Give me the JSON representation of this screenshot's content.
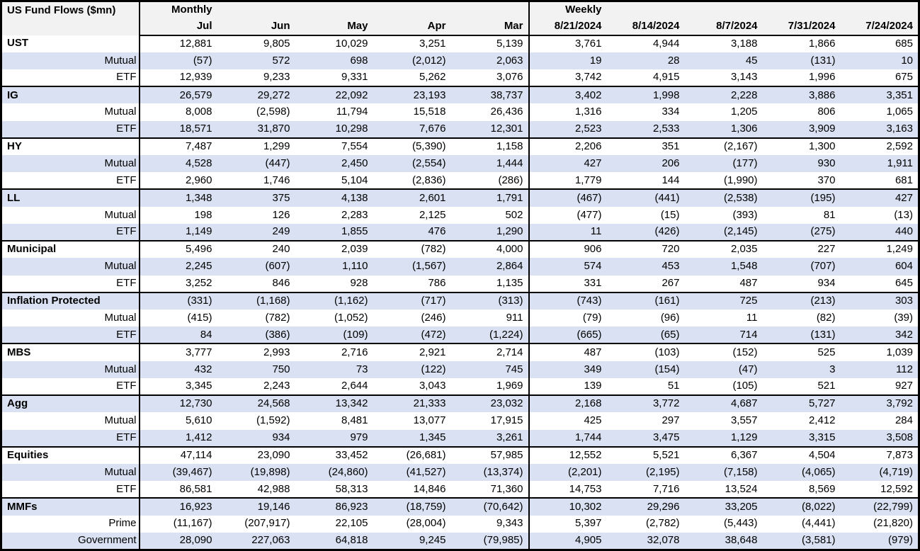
{
  "chart_data": {
    "type": "table",
    "title": "US Fund Flows ($mn)",
    "group_headers": {
      "monthly": "Monthly",
      "weekly": "Weekly"
    },
    "columns": [
      "Jul",
      "Jun",
      "May",
      "Apr",
      "Mar",
      "8/21/2024",
      "8/14/2024",
      "8/7/2024",
      "7/31/2024",
      "7/24/2024"
    ],
    "groups": [
      {
        "label": "UST",
        "values": [
          "12,881",
          "9,805",
          "10,029",
          "3,251",
          "5,139",
          "3,761",
          "4,944",
          "3,188",
          "1,866",
          "685"
        ],
        "subrows": [
          {
            "label": "Mutual",
            "values": [
              "(57)",
              "572",
              "698",
              "(2,012)",
              "2,063",
              "19",
              "28",
              "45",
              "(131)",
              "10"
            ]
          },
          {
            "label": "ETF",
            "values": [
              "12,939",
              "9,233",
              "9,331",
              "5,262",
              "3,076",
              "3,742",
              "4,915",
              "3,143",
              "1,996",
              "675"
            ]
          }
        ]
      },
      {
        "label": "IG",
        "values": [
          "26,579",
          "29,272",
          "22,092",
          "23,193",
          "38,737",
          "3,402",
          "1,998",
          "2,228",
          "3,886",
          "3,351"
        ],
        "subrows": [
          {
            "label": "Mutual",
            "values": [
              "8,008",
              "(2,598)",
              "11,794",
              "15,518",
              "26,436",
              "1,316",
              "334",
              "1,205",
              "806",
              "1,065"
            ]
          },
          {
            "label": "ETF",
            "values": [
              "18,571",
              "31,870",
              "10,298",
              "7,676",
              "12,301",
              "2,523",
              "2,533",
              "1,306",
              "3,909",
              "3,163"
            ]
          }
        ]
      },
      {
        "label": "HY",
        "values": [
          "7,487",
          "1,299",
          "7,554",
          "(5,390)",
          "1,158",
          "2,206",
          "351",
          "(2,167)",
          "1,300",
          "2,592"
        ],
        "subrows": [
          {
            "label": "Mutual",
            "values": [
              "4,528",
              "(447)",
              "2,450",
              "(2,554)",
              "1,444",
              "427",
              "206",
              "(177)",
              "930",
              "1,911"
            ]
          },
          {
            "label": "ETF",
            "values": [
              "2,960",
              "1,746",
              "5,104",
              "(2,836)",
              "(286)",
              "1,779",
              "144",
              "(1,990)",
              "370",
              "681"
            ]
          }
        ]
      },
      {
        "label": "LL",
        "values": [
          "1,348",
          "375",
          "4,138",
          "2,601",
          "1,791",
          "(467)",
          "(441)",
          "(2,538)",
          "(195)",
          "427"
        ],
        "subrows": [
          {
            "label": "Mutual",
            "values": [
              "198",
              "126",
              "2,283",
              "2,125",
              "502",
              "(477)",
              "(15)",
              "(393)",
              "81",
              "(13)"
            ]
          },
          {
            "label": "ETF",
            "values": [
              "1,149",
              "249",
              "1,855",
              "476",
              "1,290",
              "11",
              "(426)",
              "(2,145)",
              "(275)",
              "440"
            ]
          }
        ]
      },
      {
        "label": "Municipal",
        "values": [
          "5,496",
          "240",
          "2,039",
          "(782)",
          "4,000",
          "906",
          "720",
          "2,035",
          "227",
          "1,249"
        ],
        "subrows": [
          {
            "label": "Mutual",
            "values": [
              "2,245",
              "(607)",
              "1,110",
              "(1,567)",
              "2,864",
              "574",
              "453",
              "1,548",
              "(707)",
              "604"
            ]
          },
          {
            "label": "ETF",
            "values": [
              "3,252",
              "846",
              "928",
              "786",
              "1,135",
              "331",
              "267",
              "487",
              "934",
              "645"
            ]
          }
        ]
      },
      {
        "label": "Inflation Protected",
        "values": [
          "(331)",
          "(1,168)",
          "(1,162)",
          "(717)",
          "(313)",
          "(743)",
          "(161)",
          "725",
          "(213)",
          "303"
        ],
        "subrows": [
          {
            "label": "Mutual",
            "values": [
              "(415)",
              "(782)",
              "(1,052)",
              "(246)",
              "911",
              "(79)",
              "(96)",
              "11",
              "(82)",
              "(39)"
            ]
          },
          {
            "label": "ETF",
            "values": [
              "84",
              "(386)",
              "(109)",
              "(472)",
              "(1,224)",
              "(665)",
              "(65)",
              "714",
              "(131)",
              "342"
            ]
          }
        ]
      },
      {
        "label": "MBS",
        "values": [
          "3,777",
          "2,993",
          "2,716",
          "2,921",
          "2,714",
          "487",
          "(103)",
          "(152)",
          "525",
          "1,039"
        ],
        "subrows": [
          {
            "label": "Mutual",
            "values": [
              "432",
              "750",
              "73",
              "(122)",
              "745",
              "349",
              "(154)",
              "(47)",
              "3",
              "112"
            ]
          },
          {
            "label": "ETF",
            "values": [
              "3,345",
              "2,243",
              "2,644",
              "3,043",
              "1,969",
              "139",
              "51",
              "(105)",
              "521",
              "927"
            ]
          }
        ]
      },
      {
        "label": "Agg",
        "values": [
          "12,730",
          "24,568",
          "13,342",
          "21,333",
          "23,032",
          "2,168",
          "3,772",
          "4,687",
          "5,727",
          "3,792"
        ],
        "subrows": [
          {
            "label": "Mutual",
            "values": [
              "5,610",
              "(1,592)",
              "8,481",
              "13,077",
              "17,915",
              "425",
              "297",
              "3,557",
              "2,412",
              "284"
            ]
          },
          {
            "label": "ETF",
            "values": [
              "1,412",
              "934",
              "979",
              "1,345",
              "3,261",
              "1,744",
              "3,475",
              "1,129",
              "3,315",
              "3,508"
            ]
          }
        ]
      },
      {
        "label": "Equities",
        "values": [
          "47,114",
          "23,090",
          "33,452",
          "(26,681)",
          "57,985",
          "12,552",
          "5,521",
          "6,367",
          "4,504",
          "7,873"
        ],
        "subrows": [
          {
            "label": "Mutual",
            "values": [
              "(39,467)",
              "(19,898)",
              "(24,860)",
              "(41,527)",
              "(13,374)",
              "(2,201)",
              "(2,195)",
              "(7,158)",
              "(4,065)",
              "(4,719)"
            ]
          },
          {
            "label": "ETF",
            "values": [
              "86,581",
              "42,988",
              "58,313",
              "14,846",
              "71,360",
              "14,753",
              "7,716",
              "13,524",
              "8,569",
              "12,592"
            ]
          }
        ]
      },
      {
        "label": "MMFs",
        "values": [
          "16,923",
          "19,146",
          "86,923",
          "(18,759)",
          "(70,642)",
          "10,302",
          "29,296",
          "33,205",
          "(8,022)",
          "(22,799)"
        ],
        "subrows": [
          {
            "label": "Prime",
            "values": [
              "(11,167)",
              "(207,917)",
              "22,105",
              "(28,004)",
              "9,343",
              "5,397",
              "(2,782)",
              "(5,443)",
              "(4,441)",
              "(21,820)"
            ]
          },
          {
            "label": "Government",
            "values": [
              "28,090",
              "227,063",
              "64,818",
              "9,245",
              "(79,985)",
              "4,905",
              "32,078",
              "38,648",
              "(3,581)",
              "(979)"
            ]
          }
        ]
      }
    ]
  },
  "colors": {
    "stripe": "#d9e1f2",
    "header_bg": "#f2f2f2",
    "border": "#000000"
  }
}
